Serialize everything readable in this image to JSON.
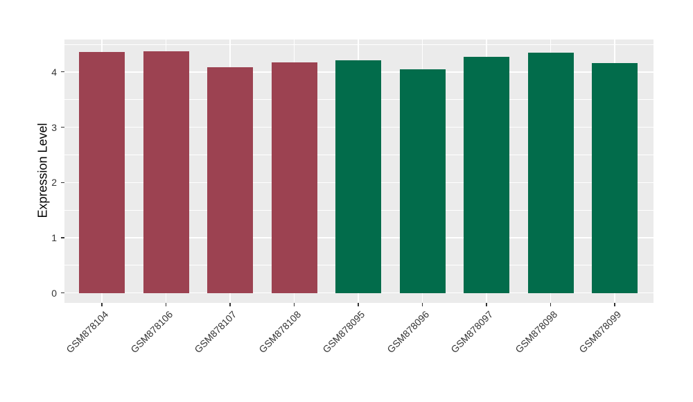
{
  "chart_data": {
    "type": "bar",
    "title": "",
    "xlabel": "",
    "ylabel": "Expression Level",
    "categories": [
      "GSM878104",
      "GSM878106",
      "GSM878107",
      "GSM878108",
      "GSM878095",
      "GSM878096",
      "GSM878097",
      "GSM878098",
      "GSM878099"
    ],
    "values": [
      4.36,
      4.38,
      4.09,
      4.17,
      4.21,
      4.05,
      4.27,
      4.35,
      4.16
    ],
    "groups": [
      "group1",
      "group1",
      "group1",
      "group1",
      "group2",
      "group2",
      "group2",
      "group2",
      "group2"
    ],
    "group_colors": {
      "group1": "#9C4251",
      "group2": "#026C4B"
    },
    "yticks": [
      0,
      1,
      2,
      3,
      4
    ],
    "minor_yticks": [
      0.5,
      1.5,
      2.5,
      3.5,
      4.5
    ],
    "ylim": [
      -0.18,
      4.59
    ],
    "legend": "none",
    "grid": "white major+minor horizontal, white major vertical at category centers",
    "panel_bg": "#EBEBEB",
    "gridline_color": "#FFFFFF",
    "tick_color": "#333333",
    "axis_text_color": "#333333",
    "x_tick_angle": 45
  }
}
